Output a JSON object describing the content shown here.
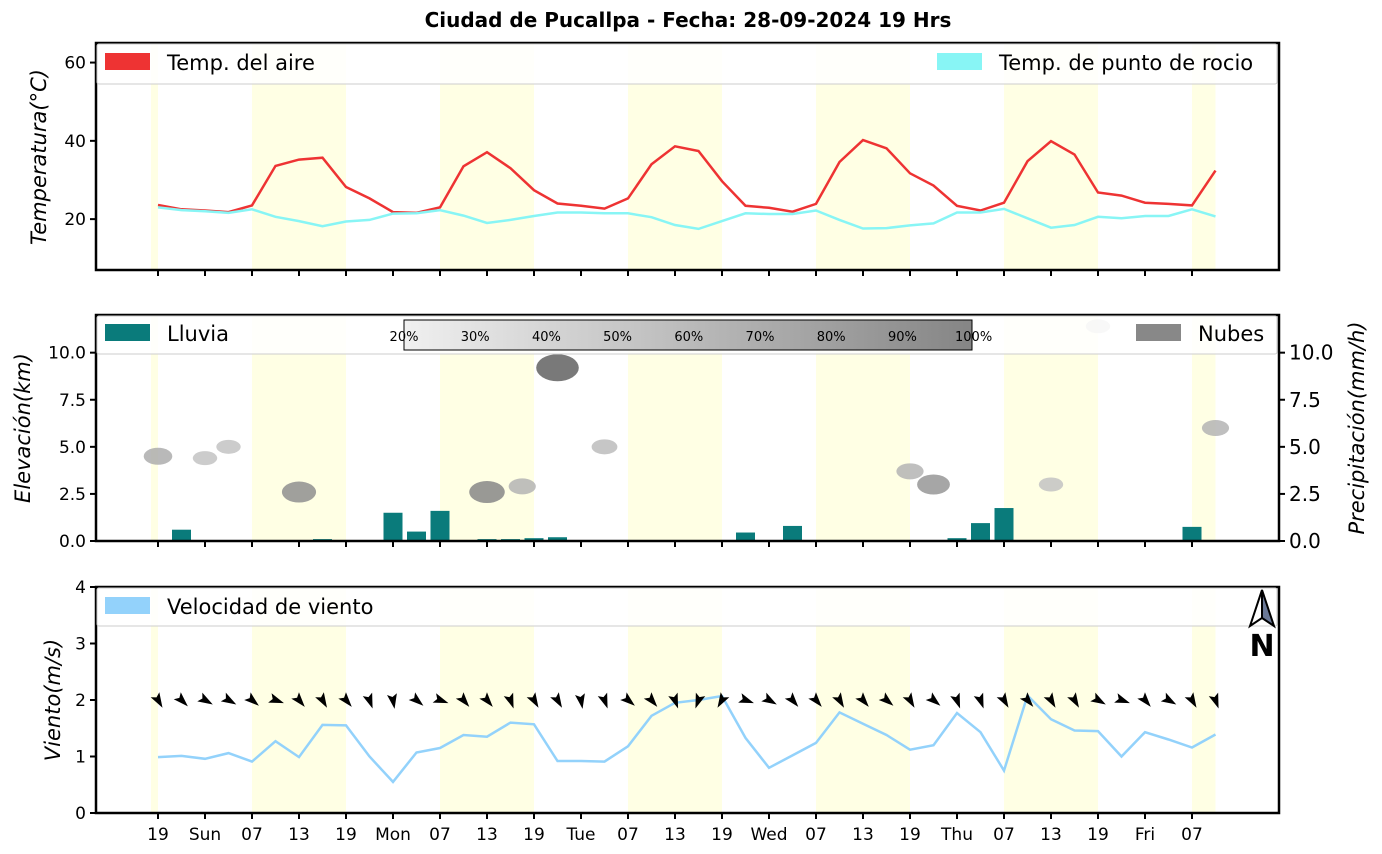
{
  "title": "Ciudad de Pucallpa   -   Fecha: 28-09-2024 19 Hrs",
  "colors": {
    "temp_air": "#ee3333",
    "dew_point": "#88f5f5",
    "rain": "#0a7b7b",
    "clouds": "#888888",
    "wind": "#93d2fb",
    "day_band": "#ffffe4"
  },
  "x_ticks": [
    "19",
    "Sun",
    "07",
    "13",
    "19",
    "Mon",
    "07",
    "13",
    "19",
    "Tue",
    "07",
    "13",
    "19",
    "Wed",
    "07",
    "13",
    "19",
    "Thu",
    "07",
    "13",
    "19",
    "Fri",
    "07"
  ],
  "chart_data": [
    {
      "type": "line",
      "ylabel": "Temperatura(°C)",
      "ylim": [
        7,
        65
      ],
      "yticks": [
        20,
        40,
        60
      ],
      "legend_placement": "top",
      "series": [
        {
          "name": "Temp. del aire",
          "color": "#ee3333",
          "values": [
            23.6,
            22.5,
            22.2,
            21.8,
            23.5,
            33.6,
            35.2,
            35.7,
            28.2,
            25.3,
            21.8,
            21.6,
            23.0,
            33.5,
            37.1,
            33.0,
            27.4,
            24.0,
            23.4,
            22.7,
            25.3,
            34.0,
            38.6,
            37.4,
            29.7,
            23.4,
            22.9,
            21.9,
            23.9,
            34.6,
            40.2,
            38.1,
            31.7,
            28.6,
            23.4,
            22.2,
            24.2,
            34.8,
            39.9,
            36.5,
            26.8,
            26.0,
            24.2,
            23.9,
            23.5,
            32.4
          ]
        },
        {
          "name": "Temp. de punto de rocio",
          "color": "#88f5f5",
          "values": [
            23.0,
            22.3,
            22.0,
            21.6,
            22.5,
            20.6,
            19.5,
            18.2,
            19.4,
            19.8,
            21.4,
            21.5,
            22.3,
            20.9,
            19.0,
            19.8,
            20.8,
            21.7,
            21.7,
            21.5,
            21.5,
            20.5,
            18.5,
            17.5,
            19.5,
            21.5,
            21.3,
            21.3,
            22.2,
            19.8,
            17.6,
            17.7,
            18.4,
            18.9,
            21.7,
            21.7,
            22.6,
            20.2,
            17.8,
            18.5,
            20.6,
            20.2,
            20.8,
            20.8,
            22.5,
            20.7
          ]
        }
      ]
    },
    {
      "type": "bar",
      "ylabel": "Elevación(km)",
      "y2label": "Precipitación(mm/h)",
      "ylim": [
        0,
        12
      ],
      "yticks": [
        0.0,
        2.5,
        5.0,
        7.5,
        10.0
      ],
      "y2ticks": [
        0.0,
        2.5,
        5.0,
        7.5,
        10.0
      ],
      "legend_placement": "top",
      "series_rain": {
        "name": "Lluvia",
        "color": "#0a7b7b",
        "values": [
          0.0,
          0.6,
          0.0,
          0.0,
          0.0,
          0.0,
          0.0,
          0.1,
          0.0,
          0.0,
          1.5,
          0.5,
          1.6,
          0.0,
          0.1,
          0.1,
          0.15,
          0.2,
          0.05,
          0.0,
          0.0,
          0.0,
          0.0,
          0.0,
          0.0,
          0.45,
          0.0,
          0.8,
          0.0,
          0.0,
          0.0,
          0.0,
          0.0,
          0.0,
          0.15,
          0.95,
          1.75,
          0.0,
          0.0,
          0.0,
          0.0,
          0.0,
          0.0,
          0.0,
          0.75,
          0.05
        ]
      },
      "series_clouds": {
        "name": "Nubes",
        "color": "#888888"
      },
      "cloud_scale_labels": [
        "20%",
        "30%",
        "40%",
        "50%",
        "60%",
        "70%",
        "80%",
        "90%",
        "100%"
      ],
      "cloud_patches": [
        {
          "x": 0,
          "y": 4.5,
          "cover": 0.45
        },
        {
          "x": 2,
          "y": 4.4,
          "cover": 0.3
        },
        {
          "x": 3,
          "y": 5.0,
          "cover": 0.3
        },
        {
          "x": 6,
          "y": 2.6,
          "cover": 0.65
        },
        {
          "x": 14,
          "y": 2.6,
          "cover": 0.7
        },
        {
          "x": 15.5,
          "y": 2.9,
          "cover": 0.4
        },
        {
          "x": 17,
          "y": 9.2,
          "cover": 0.95
        },
        {
          "x": 19,
          "y": 5.0,
          "cover": 0.35
        },
        {
          "x": 32,
          "y": 3.7,
          "cover": 0.4
        },
        {
          "x": 33,
          "y": 3.0,
          "cover": 0.6
        },
        {
          "x": 38,
          "y": 3.0,
          "cover": 0.3
        },
        {
          "x": 40,
          "y": 11.4,
          "cover": 0.3
        },
        {
          "x": 45,
          "y": 6.0,
          "cover": 0.4
        }
      ]
    },
    {
      "type": "line",
      "ylabel": "Viento(m/s)",
      "ylim": [
        0,
        4
      ],
      "yticks": [
        0,
        1,
        2,
        3,
        4
      ],
      "legend_placement": "top-left",
      "series": [
        {
          "name": "Velocidad de viento",
          "color": "#93d2fb",
          "values": [
            0.99,
            1.01,
            0.96,
            1.06,
            0.91,
            1.27,
            0.99,
            1.56,
            1.55,
            1.0,
            0.55,
            1.07,
            1.15,
            1.38,
            1.35,
            1.6,
            1.57,
            0.92,
            0.92,
            0.91,
            1.18,
            1.72,
            1.95,
            2.0,
            2.07,
            1.33,
            0.8,
            1.02,
            1.24,
            1.78,
            1.58,
            1.38,
            1.12,
            1.2,
            1.77,
            1.43,
            0.75,
            2.08,
            1.66,
            1.46,
            1.45,
            1.0,
            1.43,
            1.3,
            1.16,
            1.39
          ]
        }
      ],
      "wind_direction_deg": [
        330,
        315,
        300,
        300,
        310,
        290,
        320,
        330,
        320,
        340,
        350,
        310,
        290,
        320,
        320,
        340,
        330,
        330,
        350,
        340,
        310,
        320,
        340,
        20,
        30,
        290,
        300,
        320,
        320,
        330,
        320,
        310,
        330,
        310,
        340,
        340,
        330,
        320,
        330,
        330,
        300,
        290,
        320,
        300,
        330,
        340
      ],
      "north_label": "N"
    }
  ]
}
